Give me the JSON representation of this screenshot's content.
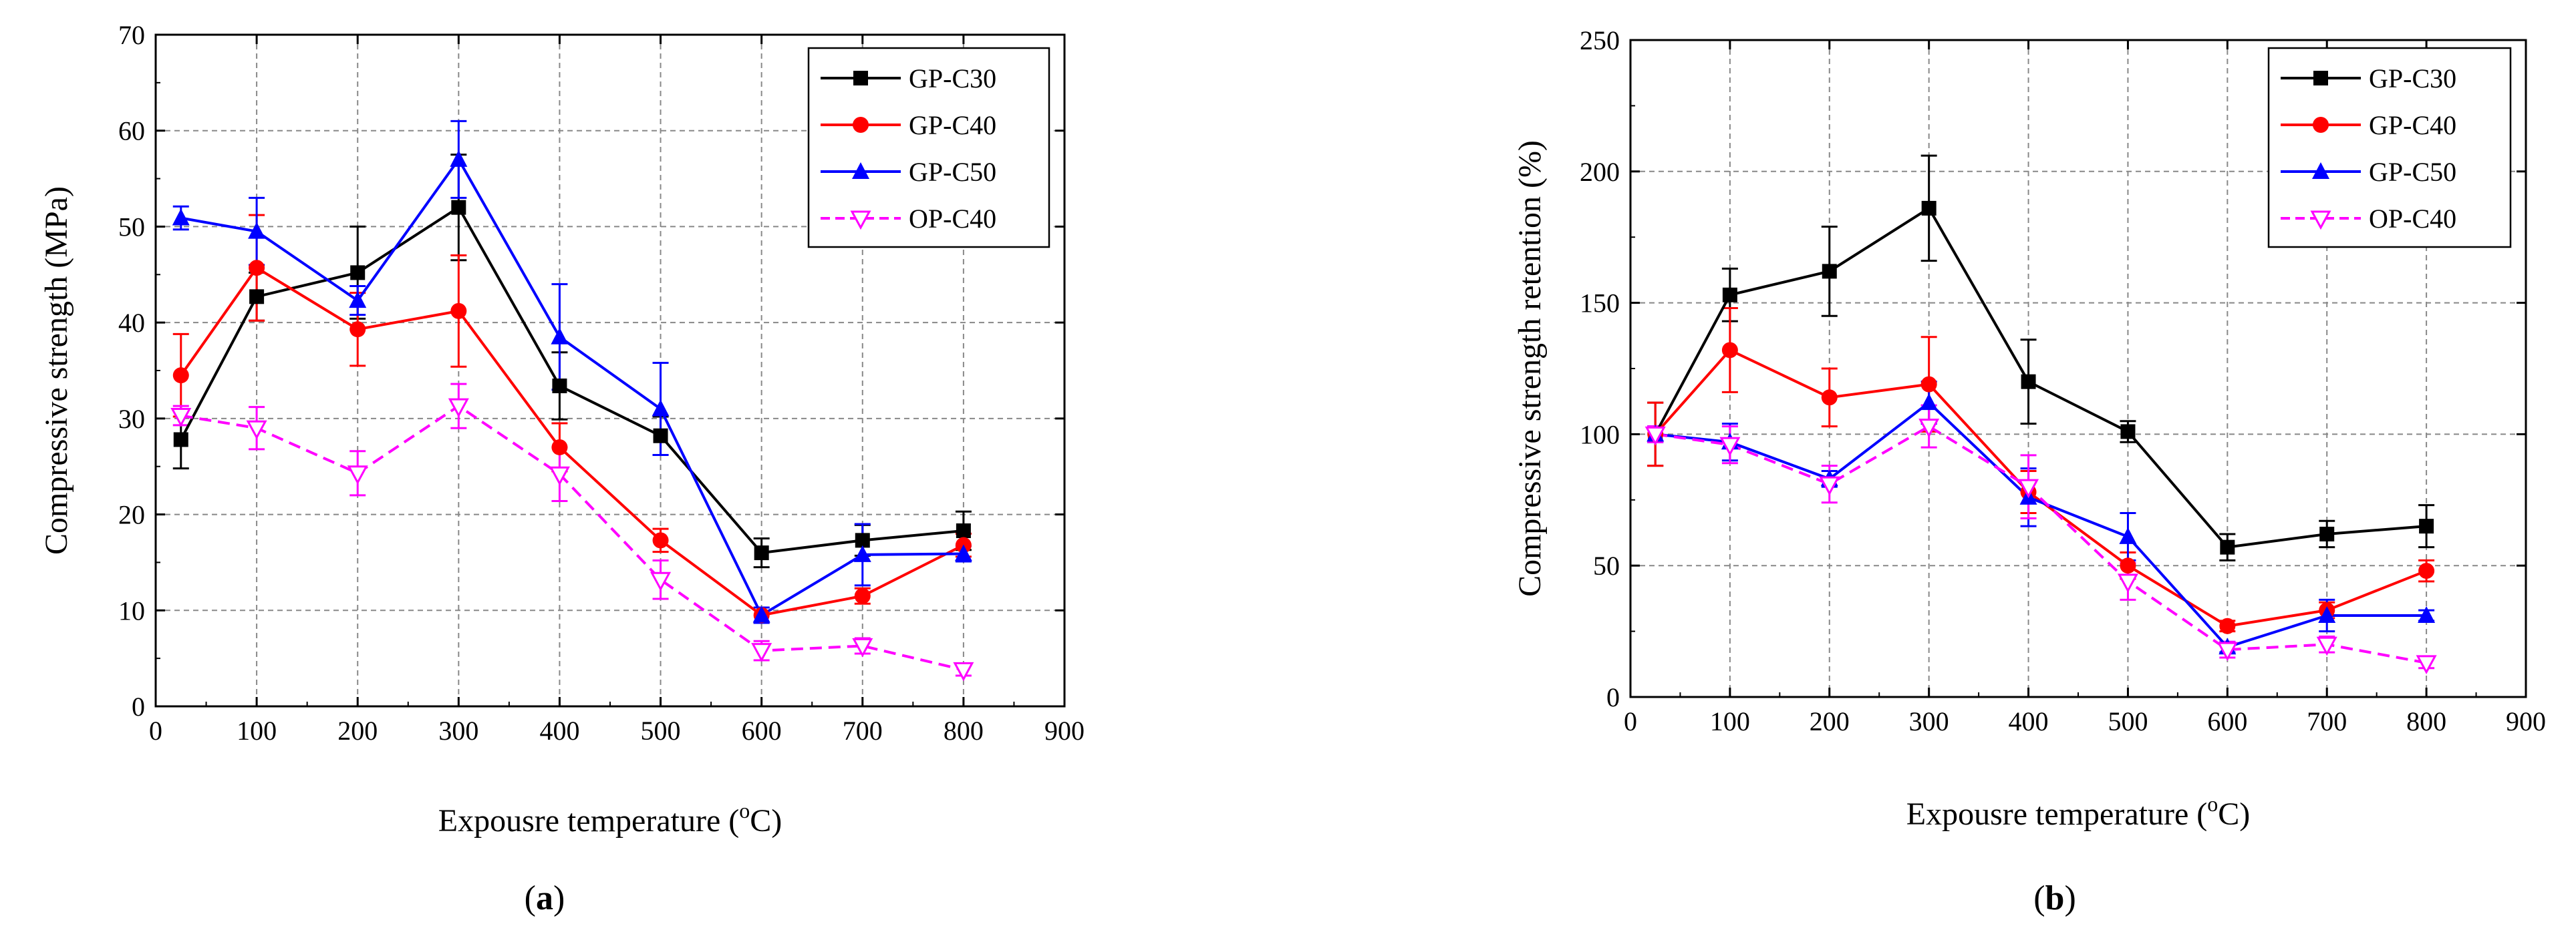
{
  "chart_data": [
    {
      "id": "a",
      "type": "line",
      "caption": {
        "open": "(",
        "letter": "a",
        "close": ")"
      },
      "xlabel": {
        "prefix": "Expousre temperature (",
        "sup": "o",
        "suffix": "C)"
      },
      "ylabel": "Compressive strength (MPa)",
      "xlim": [
        0,
        900
      ],
      "ylim": [
        0,
        70
      ],
      "xticks": [
        0,
        100,
        200,
        300,
        400,
        500,
        600,
        700,
        800,
        900
      ],
      "yticks": [
        0,
        10,
        20,
        30,
        40,
        50,
        60,
        70
      ],
      "grid": true,
      "legend_position": "top-right",
      "x": [
        25,
        100,
        200,
        300,
        400,
        500,
        600,
        700,
        800
      ],
      "series": [
        {
          "name": "GP-C30",
          "color": "#000000",
          "marker": "square",
          "dashed": false,
          "values": [
            27.8,
            42.7,
            45.2,
            52.0,
            33.4,
            28.2,
            16.0,
            17.3,
            18.3
          ],
          "errors": [
            3.0,
            2.5,
            4.8,
            5.5,
            3.5,
            2.0,
            1.5,
            1.6,
            2.0
          ]
        },
        {
          "name": "GP-C40",
          "color": "#ff0000",
          "marker": "circle",
          "dashed": false,
          "values": [
            34.5,
            45.7,
            39.3,
            41.2,
            27.0,
            17.3,
            9.5,
            11.5,
            16.8
          ],
          "errors": [
            4.3,
            5.5,
            3.8,
            5.8,
            2.5,
            1.2,
            0.8,
            0.8,
            1.2
          ]
        },
        {
          "name": "GP-C50",
          "color": "#0000ff",
          "marker": "triangle",
          "dashed": false,
          "values": [
            50.9,
            49.5,
            42.3,
            57.0,
            38.5,
            31.0,
            9.5,
            15.8,
            15.9
          ],
          "errors": [
            1.2,
            3.5,
            1.5,
            4.0,
            5.5,
            4.8,
            0.8,
            3.2,
            0.8
          ]
        },
        {
          "name": "OP-C40",
          "color": "#ff00ff",
          "marker": "triangle-down-open",
          "dashed": true,
          "values": [
            30.3,
            29.0,
            24.3,
            31.3,
            24.2,
            13.2,
            5.8,
            6.3,
            3.8
          ],
          "errors": [
            1.0,
            2.2,
            2.3,
            2.3,
            2.8,
            2.0,
            1.0,
            0.8,
            0.6
          ]
        }
      ]
    },
    {
      "id": "b",
      "type": "line",
      "caption": {
        "open": "(",
        "letter": "b",
        "close": ")"
      },
      "xlabel": {
        "prefix": "Expousre temperature (",
        "sup": "o",
        "suffix": "C)"
      },
      "ylabel": "Compressive strength retention (%)",
      "xlim": [
        0,
        900
      ],
      "ylim": [
        0,
        250
      ],
      "xticks": [
        0,
        100,
        200,
        300,
        400,
        500,
        600,
        700,
        800,
        900
      ],
      "yticks": [
        0,
        50,
        100,
        150,
        200,
        250
      ],
      "grid": true,
      "legend_position": "top-right",
      "x": [
        25,
        100,
        200,
        300,
        400,
        500,
        600,
        700,
        800
      ],
      "series": [
        {
          "name": "GP-C30",
          "color": "#000000",
          "marker": "square",
          "dashed": false,
          "values": [
            100,
            153,
            162,
            186,
            120,
            101,
            57,
            62,
            65
          ],
          "errors": [
            12,
            10,
            17,
            20,
            16,
            4,
            5,
            5,
            8
          ]
        },
        {
          "name": "GP-C40",
          "color": "#ff0000",
          "marker": "circle",
          "dashed": false,
          "values": [
            100,
            132,
            114,
            119,
            78,
            50,
            27,
            33,
            48
          ],
          "errors": [
            12,
            16,
            11,
            18,
            8,
            5,
            2,
            3,
            4
          ]
        },
        {
          "name": "GP-C50",
          "color": "#0000ff",
          "marker": "triangle",
          "dashed": false,
          "values": [
            100,
            97,
            83,
            112,
            76,
            61,
            19,
            31,
            31
          ],
          "errors": [
            3,
            7,
            3,
            8,
            11,
            9,
            2,
            6,
            2
          ]
        },
        {
          "name": "OP-C40",
          "color": "#ff00ff",
          "marker": "triangle-down-open",
          "dashed": true,
          "values": [
            100,
            96,
            81,
            103,
            80,
            44,
            18,
            20,
            13
          ],
          "errors": [
            3,
            7,
            7,
            8,
            12,
            7,
            3,
            3,
            2
          ]
        }
      ]
    }
  ]
}
